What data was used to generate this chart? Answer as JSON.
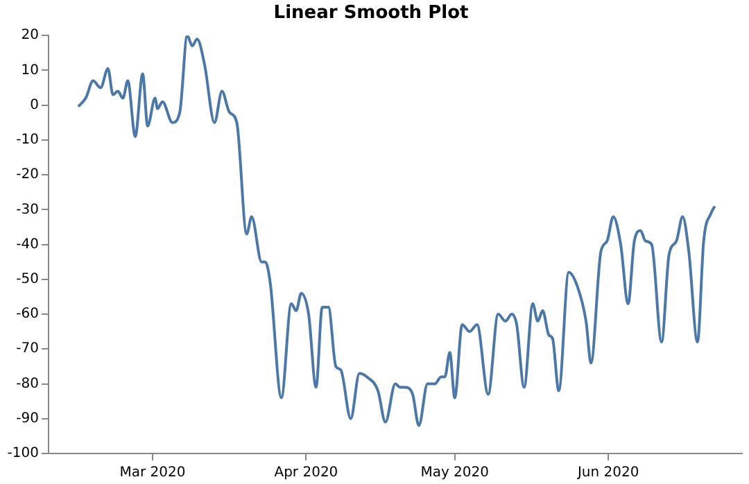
{
  "chart_data": {
    "type": "line",
    "title": "Linear Smooth Plot",
    "x": [
      "2020-02-15",
      "2020-02-16T12:00",
      "2020-02-18",
      "2020-02-19T12:00",
      "2020-02-21",
      "2020-02-22",
      "2020-02-23",
      "2020-02-24",
      "2020-02-25",
      "2020-02-26T12:00",
      "2020-02-28",
      "2020-02-29",
      "2020-03-01T12:00",
      "2020-03-02",
      "2020-03-03",
      "2020-03-05",
      "2020-03-06T12:00",
      "2020-03-08",
      "2020-03-09",
      "2020-03-10",
      "2020-03-11T12:00",
      "2020-03-13T12:00",
      "2020-03-15",
      "2020-03-16T12:00",
      "2020-03-18",
      "2020-03-20",
      "2020-03-21",
      "2020-03-23",
      "2020-03-23T18:00",
      "2020-03-24T18:00",
      "2020-03-27",
      "2020-03-29",
      "2020-03-30",
      "2020-03-31",
      "2020-04-01T12:00",
      "2020-04-03",
      "2020-04-04T06:00",
      "2020-04-05T12:00",
      "2020-04-07",
      "2020-04-08",
      "2020-04-10",
      "2020-04-11T18:00",
      "2020-04-13T06:00",
      "2020-04-15T12:00",
      "2020-04-17",
      "2020-04-19",
      "2020-04-20",
      "2020-04-21",
      "2020-04-22T12:00",
      "2020-04-23T18:00",
      "2020-04-25T12:00",
      "2020-04-27",
      "2020-04-28T06:00",
      "2020-04-29",
      "2020-04-30",
      "2020-05-01",
      "2020-05-02T12:00",
      "2020-05-04",
      "2020-05-05T12:00",
      "2020-05-07T18:00",
      "2020-05-09T18:00",
      "2020-05-11T06:00",
      "2020-05-12T12:00",
      "2020-05-13T12:00",
      "2020-05-15",
      "2020-05-16T18:00",
      "2020-05-17T18:00",
      "2020-05-18T18:00",
      "2020-05-20",
      "2020-05-20T18:00",
      "2020-05-22",
      "2020-05-24",
      "2020-05-25T18:00",
      "2020-05-27T12:00",
      "2020-05-28T12:00",
      "2020-05-30T12:00",
      "2020-05-31T18:00",
      "2020-06-02",
      "2020-06-03T12:00",
      "2020-06-05",
      "2020-06-06T06:00",
      "2020-06-07T12:00",
      "2020-06-08T12:00",
      "2020-06-09T18:00",
      "2020-06-11T18:00",
      "2020-06-13T06:00",
      "2020-06-14T18:00",
      "2020-06-16",
      "2020-06-17T06:00",
      "2020-06-19",
      "2020-06-20T06:00",
      "2020-06-21T18:00",
      "2020-06-22T12:00"
    ],
    "series": [
      {
        "color": "#4c78a8",
        "values": [
          -0.4,
          2,
          7,
          5,
          10.5,
          3,
          4,
          2,
          7,
          -9,
          9,
          -6,
          2,
          -1,
          1,
          -5,
          -2,
          20,
          17,
          19,
          11.6,
          -5,
          4,
          -2,
          -5,
          -37,
          -32,
          -45,
          -45,
          -51,
          -84,
          -57,
          -59,
          -54,
          -60,
          -81,
          -58,
          -58,
          -75,
          -76,
          -90,
          -77,
          -78,
          -82,
          -91,
          -80,
          -81,
          -81,
          -83,
          -92,
          -80,
          -80,
          -78,
          -78,
          -71,
          -84,
          -63,
          -65,
          -63,
          -83,
          -60,
          -62,
          -60,
          -63,
          -81,
          -57,
          -62,
          -59,
          -66,
          -67,
          -82,
          -48,
          -52,
          -62,
          -74,
          -42,
          -39,
          -32,
          -40,
          -57,
          -39,
          -36,
          -39,
          -40,
          -68,
          -43,
          -39,
          -32,
          -42,
          -68,
          -39,
          -31,
          -29
        ]
      }
    ],
    "xlim": [
      "2020-02-09",
      "2020-06-28"
    ],
    "xticks": [
      {
        "value": "2020-03-01",
        "label": "Mar 2020"
      },
      {
        "value": "2020-04-01",
        "label": "Apr 2020"
      },
      {
        "value": "2020-05-01",
        "label": "May 2020"
      },
      {
        "value": "2020-06-01",
        "label": "Jun 2020"
      }
    ],
    "ylim": [
      -100,
      20
    ],
    "yticks": [
      -100,
      -90,
      -80,
      -70,
      -60,
      -50,
      -40,
      -30,
      -20,
      -10,
      0,
      10,
      20
    ],
    "grid": false,
    "legend": false,
    "line_style": "solid"
  }
}
